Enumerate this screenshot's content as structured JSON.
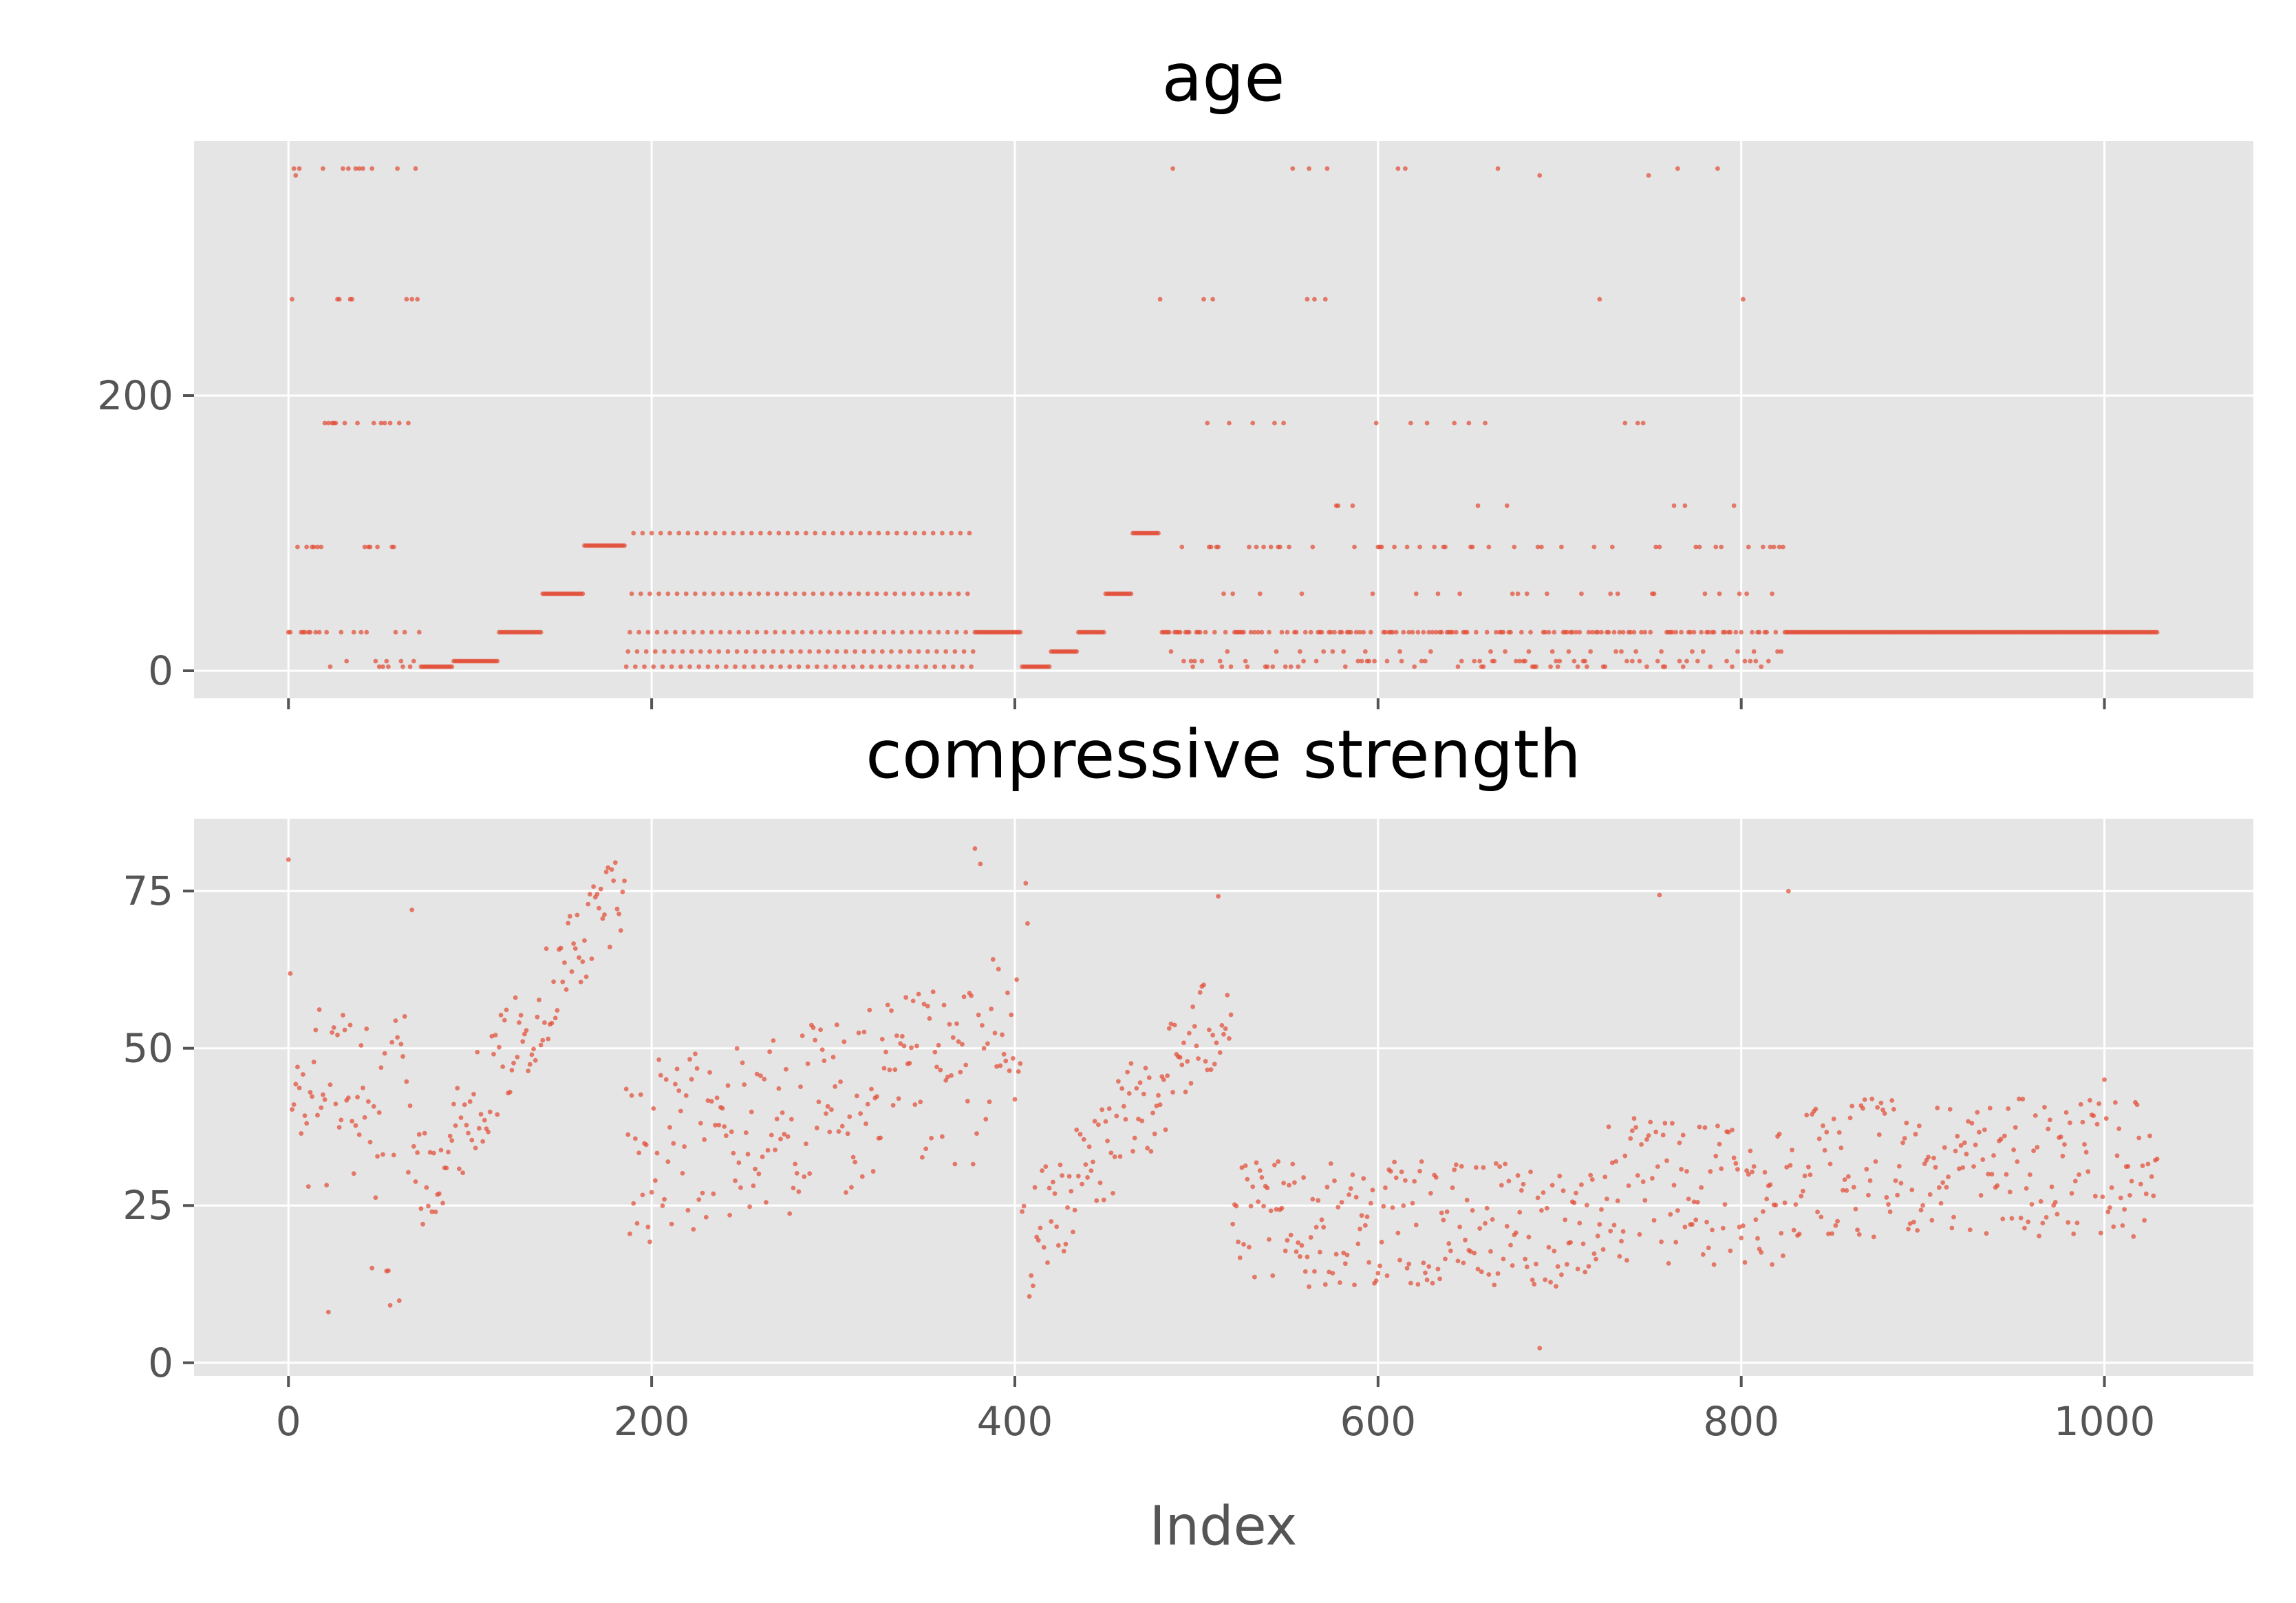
{
  "figure": {
    "background": "#ffffff",
    "panel_background": "#e5e5e5",
    "grid_color": "#ffffff",
    "marker_color": "#e24a33",
    "tick_color": "#555555"
  },
  "chart_data": [
    {
      "type": "scatter",
      "title": "age",
      "xlabel": "",
      "ylabel": "",
      "xlim": [
        -52,
        1082
      ],
      "ylim": [
        -20,
        385
      ],
      "x_ticks": [
        0,
        200,
        400,
        600,
        800,
        1000
      ],
      "x_tick_labels_visible": false,
      "y_ticks": [
        0,
        200
      ],
      "y_tick_labels": [
        "0",
        "200"
      ],
      "grid": true,
      "legend": "none",
      "values_by_index": {
        "0": 28,
        "1": 28,
        "2": 270,
        "3": 365,
        "4": 360,
        "5": 90,
        "6": 365,
        "7": 28,
        "8": 28,
        "9": 28,
        "10": 90,
        "11": 28,
        "12": 28,
        "13": 90,
        "14": 90,
        "15": 28,
        "16": 90,
        "17": 28,
        "18": 90,
        "19": 365,
        "20": 180,
        "21": 28,
        "22": 180,
        "23": 3,
        "24": 180,
        "25": 180,
        "26": 180,
        "27": 270,
        "28": 270,
        "29": 28,
        "30": 365,
        "31": 180,
        "32": 7,
        "33": 365,
        "34": 270,
        "35": 270,
        "36": 28,
        "37": 365,
        "38": 180,
        "39": 365,
        "40": 28,
        "41": 365,
        "42": 90,
        "43": 28,
        "44": 90,
        "45": 90,
        "46": 365,
        "47": 180,
        "48": 7,
        "49": 90,
        "50": 3,
        "51": 180,
        "52": 3,
        "53": 180,
        "54": 7,
        "55": 3,
        "56": 180,
        "57": 90,
        "58": 90,
        "59": 28,
        "60": 365,
        "61": 180,
        "62": 7,
        "63": 3,
        "64": 28,
        "65": 270,
        "66": 180,
        "67": 3,
        "68": 270,
        "69": 7,
        "70": 365,
        "71": 270,
        "72": 28
      },
      "constant_runs": [
        {
          "x_from": 73,
          "x_to": 90,
          "value": 3
        },
        {
          "x_from": 91,
          "x_to": 115,
          "value": 7
        },
        {
          "x_from": 116,
          "x_to": 139,
          "value": 28
        },
        {
          "x_from": 140,
          "x_to": 162,
          "value": 56
        },
        {
          "x_from": 163,
          "x_to": 185,
          "value": 91
        },
        {
          "x_from": 404,
          "x_to": 419,
          "value": 3
        },
        {
          "x_from": 420,
          "x_to": 434,
          "value": 14
        },
        {
          "x_from": 435,
          "x_to": 449,
          "value": 28
        },
        {
          "x_from": 450,
          "x_to": 464,
          "value": 56
        },
        {
          "x_from": 465,
          "x_to": 479,
          "value": 100
        },
        {
          "x_from": 825,
          "x_to": 1029,
          "value": 28
        },
        {
          "x_from": 378,
          "x_to": 403,
          "value": 28
        }
      ],
      "repeating_age_groups": [
        {
          "x_from": 186,
          "x_to": 377,
          "step": 5,
          "values": [
            3,
            14,
            28,
            56,
            100
          ]
        },
        {
          "x_from": 480,
          "x_to": 824,
          "note_values": [
            3,
            7,
            14,
            28,
            56,
            90,
            120,
            180,
            270,
            360,
            365
          ]
        }
      ]
    },
    {
      "type": "scatter",
      "title": "compressive strength",
      "xlabel": "Index",
      "ylabel": "",
      "xlim": [
        -52,
        1082
      ],
      "ylim": [
        -2.1,
        86.5
      ],
      "x_ticks": [
        0,
        200,
        400,
        600,
        800,
        1000
      ],
      "x_tick_labels": [
        "0",
        "200",
        "400",
        "600",
        "800",
        "1000"
      ],
      "y_ticks": [
        0,
        25,
        50,
        75
      ],
      "y_tick_labels": [
        "0",
        "25",
        "50",
        "75"
      ],
      "grid": true,
      "legend": "none",
      "highlight_points": [
        {
          "x": 0,
          "y": 79.99
        },
        {
          "x": 1,
          "y": 61.89
        },
        {
          "x": 2,
          "y": 40.27
        },
        {
          "x": 3,
          "y": 41.05
        },
        {
          "x": 4,
          "y": 44.3
        },
        {
          "x": 5,
          "y": 47.03
        },
        {
          "x": 6,
          "y": 43.7
        },
        {
          "x": 7,
          "y": 36.45
        },
        {
          "x": 8,
          "y": 45.85
        },
        {
          "x": 9,
          "y": 39.29
        },
        {
          "x": 10,
          "y": 38.07
        },
        {
          "x": 11,
          "y": 28.02
        },
        {
          "x": 12,
          "y": 43.01
        },
        {
          "x": 13,
          "y": 42.33
        },
        {
          "x": 14,
          "y": 47.81
        },
        {
          "x": 15,
          "y": 52.91
        },
        {
          "x": 16,
          "y": 39.36
        },
        {
          "x": 17,
          "y": 56.14
        },
        {
          "x": 18,
          "y": 40.56
        },
        {
          "x": 19,
          "y": 42.62
        },
        {
          "x": 20,
          "y": 41.84
        },
        {
          "x": 21,
          "y": 28.24
        },
        {
          "x": 22,
          "y": 8.06
        },
        {
          "x": 23,
          "y": 44.21
        },
        {
          "x": 24,
          "y": 52.52
        },
        {
          "x": 25,
          "y": 53.3
        },
        {
          "x": 26,
          "y": 41.15
        },
        {
          "x": 27,
          "y": 52.12
        },
        {
          "x": 28,
          "y": 37.43
        },
        {
          "x": 29,
          "y": 38.6
        },
        {
          "x": 30,
          "y": 55.26
        },
        {
          "x": 31,
          "y": 52.91
        },
        {
          "x": 32,
          "y": 41.72
        },
        {
          "x": 33,
          "y": 42.13
        },
        {
          "x": 34,
          "y": 53.69
        },
        {
          "x": 35,
          "y": 38.41
        },
        {
          "x": 36,
          "y": 30.08
        },
        {
          "x": 37,
          "y": 37.72
        },
        {
          "x": 38,
          "y": 42.23
        },
        {
          "x": 39,
          "y": 36.25
        },
        {
          "x": 40,
          "y": 50.46
        },
        {
          "x": 41,
          "y": 43.7
        },
        {
          "x": 42,
          "y": 39.0
        },
        {
          "x": 43,
          "y": 53.1
        },
        {
          "x": 44,
          "y": 41.54
        },
        {
          "x": 45,
          "y": 35.08
        },
        {
          "x": 46,
          "y": 15.05
        },
        {
          "x": 47,
          "y": 40.76
        },
        {
          "x": 48,
          "y": 26.26
        },
        {
          "x": 49,
          "y": 32.82
        },
        {
          "x": 50,
          "y": 39.78
        },
        {
          "x": 51,
          "y": 46.93
        },
        {
          "x": 52,
          "y": 33.12
        },
        {
          "x": 53,
          "y": 49.19
        },
        {
          "x": 54,
          "y": 14.59
        },
        {
          "x": 55,
          "y": 14.64
        },
        {
          "x": 56,
          "y": 9.13
        },
        {
          "x": 57,
          "y": 50.95
        },
        {
          "x": 58,
          "y": 33.02
        },
        {
          "x": 59,
          "y": 54.38
        },
        {
          "x": 60,
          "y": 51.73
        },
        {
          "x": 61,
          "y": 9.87
        },
        {
          "x": 62,
          "y": 50.66
        },
        {
          "x": 63,
          "y": 48.7
        },
        {
          "x": 64,
          "y": 55.06
        },
        {
          "x": 65,
          "y": 44.7
        },
        {
          "x": 66,
          "y": 30.28
        },
        {
          "x": 67,
          "y": 40.86
        },
        {
          "x": 68,
          "y": 71.99
        },
        {
          "x": 69,
          "y": 34.4
        },
        {
          "x": 70,
          "y": 28.8
        },
        {
          "x": 71,
          "y": 33.4
        },
        {
          "x": 72,
          "y": 36.3
        },
        {
          "x": 378,
          "y": 81.75
        },
        {
          "x": 381,
          "y": 79.3
        },
        {
          "x": 406,
          "y": 76.24
        },
        {
          "x": 407,
          "y": 69.84
        },
        {
          "x": 512,
          "y": 74.17
        },
        {
          "x": 755,
          "y": 74.36
        },
        {
          "x": 826,
          "y": 74.99
        },
        {
          "x": 689,
          "y": 2.33
        },
        {
          "x": 1000,
          "y": 45.0
        },
        {
          "x": 1029,
          "y": 32.4
        }
      ],
      "generated_series_note": "remaining points follow the observed per-index-range spread"
    }
  ]
}
